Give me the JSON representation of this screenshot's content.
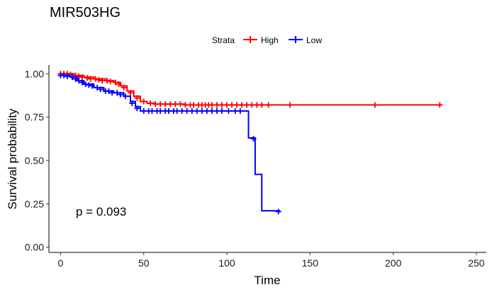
{
  "chart_data": {
    "type": "line",
    "subtype": "kaplan-meier",
    "title": "MIR503HG",
    "xlabel": "Time",
    "ylabel": "Survival probability",
    "xlim": [
      -7,
      256
    ],
    "ylim": [
      -0.03,
      1.05
    ],
    "xticks": [
      0,
      50,
      100,
      150,
      200,
      250
    ],
    "yticks": [
      0.0,
      0.25,
      0.5,
      0.75,
      1.0
    ],
    "ytick_labels": [
      "0.00",
      "0.25",
      "0.50",
      "0.75",
      "1.00"
    ],
    "legend": {
      "title": "Strata",
      "position": "top"
    },
    "annotation": "p = 0.093",
    "grid": false,
    "series": [
      {
        "name": "High",
        "color": "#ff0000",
        "steps": [
          [
            0,
            1.0
          ],
          [
            8,
            0.99
          ],
          [
            14,
            0.98
          ],
          [
            20,
            0.97
          ],
          [
            27,
            0.96
          ],
          [
            32,
            0.95
          ],
          [
            36,
            0.93
          ],
          [
            40,
            0.9
          ],
          [
            44,
            0.87
          ],
          [
            48,
            0.84
          ],
          [
            52,
            0.83
          ],
          [
            57,
            0.825
          ],
          [
            75,
            0.82
          ],
          [
            229,
            0.82
          ]
        ],
        "censors": [
          [
            0,
            1.0
          ],
          [
            2,
            1.0
          ],
          [
            4,
            1.0
          ],
          [
            6,
            0.995
          ],
          [
            9,
            0.99
          ],
          [
            11,
            0.985
          ],
          [
            13,
            0.98
          ],
          [
            16,
            0.975
          ],
          [
            18,
            0.97
          ],
          [
            21,
            0.97
          ],
          [
            23,
            0.965
          ],
          [
            25,
            0.96
          ],
          [
            28,
            0.96
          ],
          [
            30,
            0.955
          ],
          [
            33,
            0.95
          ],
          [
            35,
            0.94
          ],
          [
            38,
            0.92
          ],
          [
            42,
            0.89
          ],
          [
            46,
            0.86
          ],
          [
            50,
            0.84
          ],
          [
            54,
            0.83
          ],
          [
            57,
            0.825
          ],
          [
            60,
            0.825
          ],
          [
            63,
            0.825
          ],
          [
            66,
            0.825
          ],
          [
            69,
            0.825
          ],
          [
            72,
            0.825
          ],
          [
            75,
            0.82
          ],
          [
            78,
            0.82
          ],
          [
            80,
            0.82
          ],
          [
            83,
            0.82
          ],
          [
            85,
            0.82
          ],
          [
            87,
            0.82
          ],
          [
            89,
            0.82
          ],
          [
            91,
            0.82
          ],
          [
            94,
            0.82
          ],
          [
            97,
            0.82
          ],
          [
            100,
            0.82
          ],
          [
            103,
            0.82
          ],
          [
            106,
            0.82
          ],
          [
            109,
            0.82
          ],
          [
            112,
            0.82
          ],
          [
            115,
            0.82
          ],
          [
            118,
            0.82
          ],
          [
            121,
            0.82
          ],
          [
            125,
            0.82
          ],
          [
            138,
            0.82
          ],
          [
            189,
            0.82
          ],
          [
            228,
            0.82
          ]
        ]
      },
      {
        "name": "Low",
        "color": "#0000ff",
        "steps": [
          [
            0,
            0.99
          ],
          [
            6,
            0.98
          ],
          [
            10,
            0.96
          ],
          [
            14,
            0.94
          ],
          [
            20,
            0.92
          ],
          [
            26,
            0.9
          ],
          [
            32,
            0.89
          ],
          [
            38,
            0.87
          ],
          [
            42,
            0.84
          ],
          [
            45,
            0.81
          ],
          [
            48,
            0.785
          ],
          [
            113,
            0.785
          ],
          [
            113,
            0.63
          ],
          [
            117,
            0.63
          ],
          [
            117,
            0.42
          ],
          [
            121,
            0.42
          ],
          [
            121,
            0.21
          ],
          [
            132,
            0.21
          ]
        ],
        "censors": [
          [
            0,
            0.99
          ],
          [
            2,
            0.99
          ],
          [
            4,
            0.985
          ],
          [
            7,
            0.98
          ],
          [
            9,
            0.97
          ],
          [
            11,
            0.96
          ],
          [
            13,
            0.95
          ],
          [
            15,
            0.94
          ],
          [
            17,
            0.935
          ],
          [
            19,
            0.93
          ],
          [
            22,
            0.92
          ],
          [
            24,
            0.91
          ],
          [
            27,
            0.9
          ],
          [
            29,
            0.9
          ],
          [
            31,
            0.89
          ],
          [
            34,
            0.89
          ],
          [
            36,
            0.88
          ],
          [
            39,
            0.87
          ],
          [
            43,
            0.83
          ],
          [
            46,
            0.8
          ],
          [
            50,
            0.785
          ],
          [
            53,
            0.785
          ],
          [
            55,
            0.785
          ],
          [
            58,
            0.785
          ],
          [
            60,
            0.785
          ],
          [
            63,
            0.785
          ],
          [
            65,
            0.785
          ],
          [
            68,
            0.785
          ],
          [
            70,
            0.785
          ],
          [
            73,
            0.785
          ],
          [
            76,
            0.785
          ],
          [
            79,
            0.785
          ],
          [
            82,
            0.785
          ],
          [
            85,
            0.785
          ],
          [
            88,
            0.785
          ],
          [
            91,
            0.785
          ],
          [
            94,
            0.785
          ],
          [
            97,
            0.785
          ],
          [
            101,
            0.785
          ],
          [
            105,
            0.785
          ],
          [
            108,
            0.785
          ],
          [
            116,
            0.625
          ],
          [
            131,
            0.205
          ]
        ]
      }
    ]
  }
}
